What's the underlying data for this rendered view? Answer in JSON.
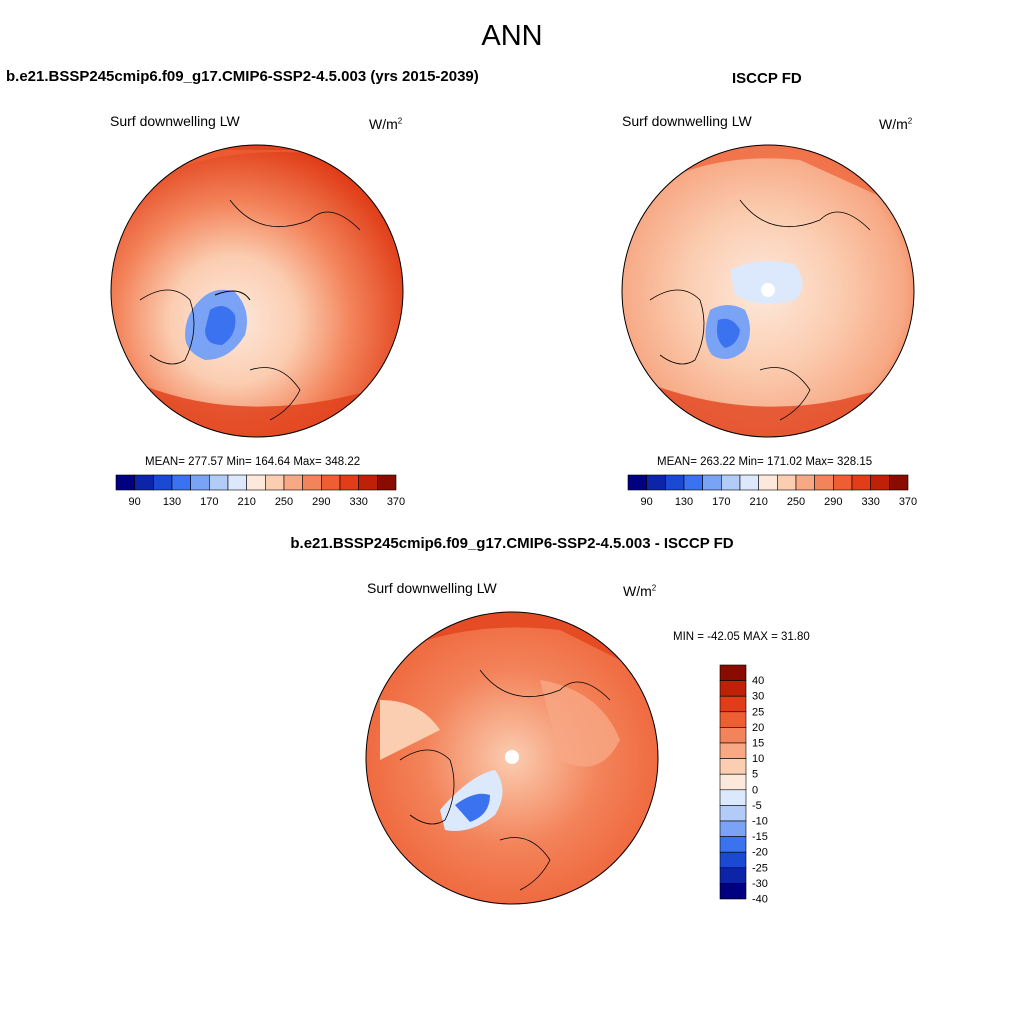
{
  "page_title": "ANN",
  "panels": {
    "model": {
      "title": "b.e21.BSSP245cmip6.f09_g17.CMIP6-SSP2-4.5.003 (yrs 2015-2039)",
      "variable": "Surf downwelling LW",
      "units_base": "W/m",
      "units_exp": "2",
      "stats": "MEAN= 277.57  Min= 164.64  Max= 348.22",
      "colorbar_labels": [
        "90",
        "130",
        "170",
        "210",
        "250",
        "290",
        "330",
        "370"
      ]
    },
    "obs": {
      "title": "ISCCP FD",
      "variable": "Surf downwelling LW",
      "units_base": "W/m",
      "units_exp": "2",
      "stats": "MEAN= 263.22  Min= 171.02  Max= 328.15",
      "colorbar_labels": [
        "90",
        "130",
        "170",
        "210",
        "250",
        "290",
        "330",
        "370"
      ]
    },
    "diff": {
      "title": "b.e21.BSSP245cmip6.f09_g17.CMIP6-SSP2-4.5.003 - ISCCP FD",
      "variable": "Surf downwelling LW",
      "units_base": "W/m",
      "units_exp": "2",
      "stats": "MIN = -42.05 MAX =  31.80",
      "colorbar_labels": [
        "40",
        "30",
        "25",
        "20",
        "15",
        "10",
        "5",
        "0",
        "-5",
        "-10",
        "-15",
        "-20",
        "-25",
        "-30",
        "-40"
      ]
    }
  },
  "colors": {
    "abs_scale": [
      "#000080",
      "#0c25a8",
      "#1a49d2",
      "#3b72f0",
      "#7aa2f5",
      "#b2cbf7",
      "#dce8fb",
      "#fde9dc",
      "#fbcdb1",
      "#f7a884",
      "#f3835a",
      "#ee5e33",
      "#e03d18",
      "#bd2206",
      "#8a0c00"
    ],
    "diff_scale": [
      "#8a0c00",
      "#bd2206",
      "#e03d18",
      "#ee5e33",
      "#f3835a",
      "#f7a884",
      "#fbcdb1",
      "#fde9dc",
      "#dce8fb",
      "#b2cbf7",
      "#7aa2f5",
      "#3b72f0",
      "#1a49d2",
      "#0c25a8",
      "#000080"
    ]
  }
}
